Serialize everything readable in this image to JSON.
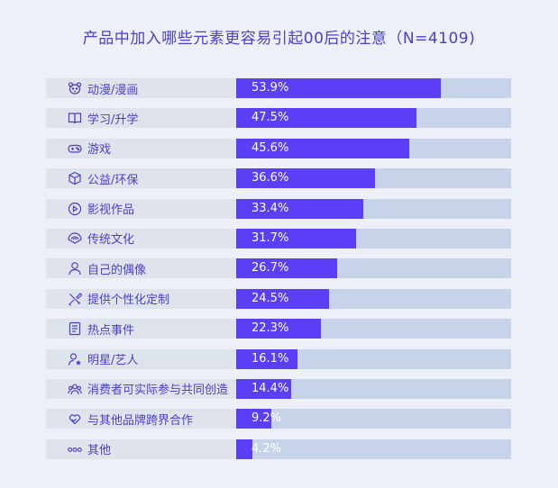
{
  "title": "产品中加入哪些元素更容易引起00后的注意（N=4109)",
  "colors": {
    "bar": "#5a3ff7",
    "track": "#c7d3e8",
    "label_bg": "#dfe3eb",
    "accent": "#4a3fd0"
  },
  "chart_data": {
    "type": "bar",
    "orientation": "horizontal",
    "title": "产品中加入哪些元素更容易引起00后的注意（N=4109)",
    "xlim": [
      0,
      72.5
    ],
    "categories": [
      "动漫/漫画",
      "学习/升学",
      "游戏",
      "公益/环保",
      "影视作品",
      "传统文化",
      "自己的偶像",
      "提供个性化定制",
      "热点事件",
      "明星/艺人",
      "消费者可实际参与共同创造",
      "与其他品牌跨界合作",
      "其他"
    ],
    "values": [
      53.9,
      47.5,
      45.6,
      36.6,
      33.4,
      31.7,
      26.7,
      24.5,
      22.3,
      16.1,
      14.4,
      9.2,
      4.2
    ],
    "value_labels": [
      "53.9%",
      "47.5%",
      "45.6%",
      "36.6%",
      "33.4%",
      "31.7%",
      "26.7%",
      "24.5%",
      "22.3%",
      "16.1%",
      "14.4%",
      "9.2%",
      "4.2%"
    ],
    "icons": [
      "bear-icon",
      "book-icon",
      "gamepad-icon",
      "box-icon",
      "play-icon",
      "fan-icon",
      "person-icon",
      "tools-icon",
      "news-icon",
      "star-person-icon",
      "group-icon",
      "heart-hands-icon",
      "dots-icon"
    ]
  }
}
